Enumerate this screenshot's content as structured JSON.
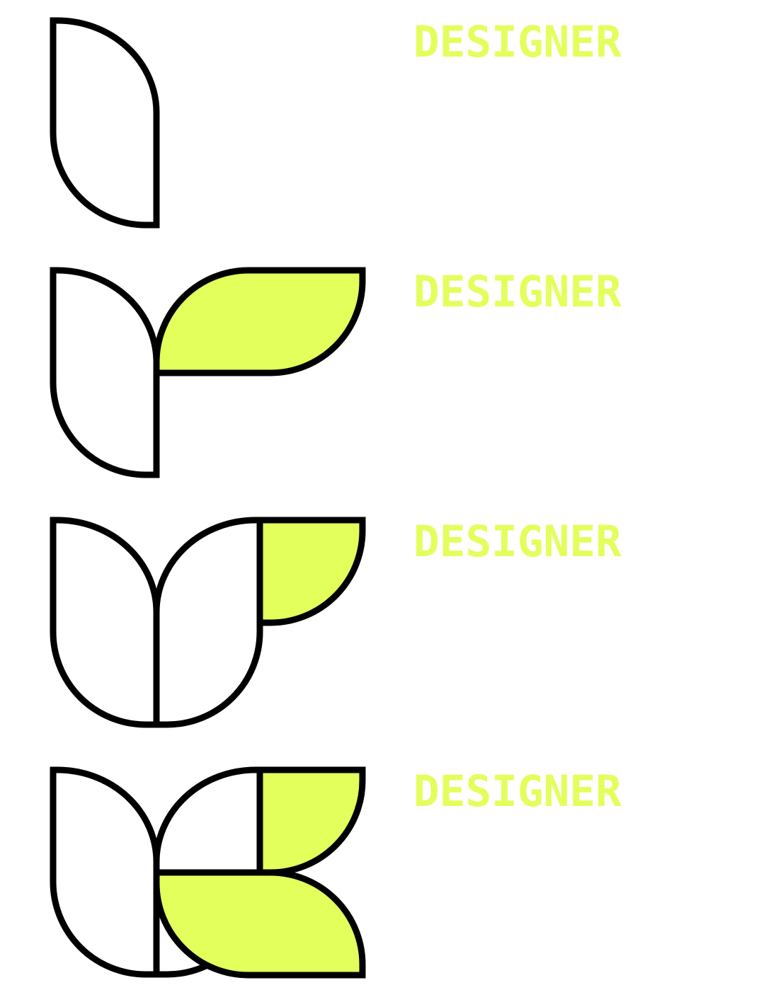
{
  "colors": {
    "accent": "#E2FF5B",
    "stroke": "#000000",
    "background": "#FFFFFF"
  },
  "rows": [
    {
      "label": "DESIGNER"
    },
    {
      "label": "DESIGNER"
    },
    {
      "label": "DESIGNER"
    },
    {
      "label": "DESIGNER"
    }
  ]
}
